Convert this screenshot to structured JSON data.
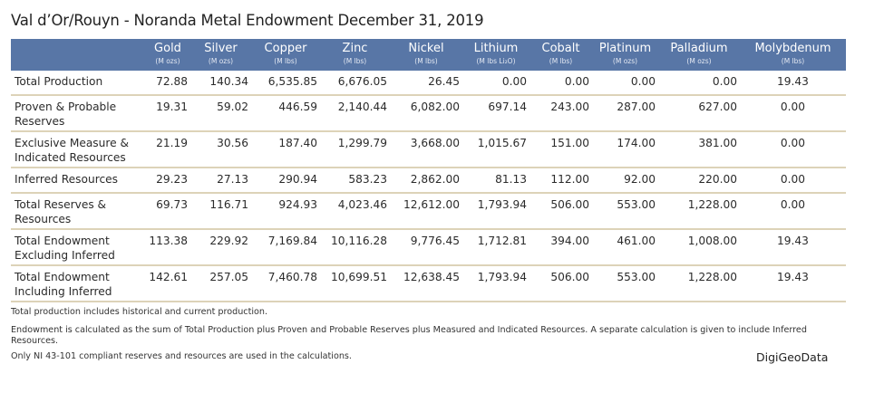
{
  "title": "Val d’Or/Rouyn - Noranda Metal Endowment December 31, 2019",
  "header_color": "#5876a6",
  "columns": [
    {
      "name": "Gold",
      "unit": "(M ozs)"
    },
    {
      "name": "Silver",
      "unit": "(M ozs)"
    },
    {
      "name": "Copper",
      "unit": "(M lbs)"
    },
    {
      "name": "Zinc",
      "unit": "(M lbs)"
    },
    {
      "name": "Nickel",
      "unit": "(M lbs)"
    },
    {
      "name": "Lithium",
      "unit": "(M lbs Li₂O)"
    },
    {
      "name": "Cobalt",
      "unit": "(M lbs)"
    },
    {
      "name": "Platinum",
      "unit": "(M ozs)"
    },
    {
      "name": "Palladium",
      "unit": "(M ozs)"
    },
    {
      "name": "Molybdenum",
      "unit": "(M lbs)"
    }
  ],
  "rows": [
    {
      "label": "Total Production",
      "values": [
        "72.88",
        "140.34",
        "6,535.85",
        "6,676.05",
        "26.45",
        "0.00",
        "0.00",
        "0.00",
        "0.00",
        "19.43"
      ]
    },
    {
      "label": "Proven & Probable Reserves",
      "values": [
        "19.31",
        "59.02",
        "446.59",
        "2,140.44",
        "6,082.00",
        "697.14",
        "243.00",
        "287.00",
        "627.00",
        "0.00"
      ]
    },
    {
      "label": "Exclusive Measure & Indicated Resources",
      "values": [
        "21.19",
        "30.56",
        "187.40",
        "1,299.79",
        "3,668.00",
        "1,015.67",
        "151.00",
        "174.00",
        "381.00",
        "0.00"
      ]
    },
    {
      "label": "Inferred Resources",
      "values": [
        "29.23",
        "27.13",
        "290.94",
        "583.23",
        "2,862.00",
        "81.13",
        "112.00",
        "92.00",
        "220.00",
        "0.00"
      ]
    },
    {
      "label": "Total Reserves & Resources",
      "values": [
        "69.73",
        "116.71",
        "924.93",
        "4,023.46",
        "12,612.00",
        "1,793.94",
        "506.00",
        "553.00",
        "1,228.00",
        "0.00"
      ]
    },
    {
      "label": "Total Endowment Excluding Inferred",
      "values": [
        "113.38",
        "229.92",
        "7,169.84",
        "10,116.28",
        "9,776.45",
        "1,712.81",
        "394.00",
        "461.00",
        "1,008.00",
        "19.43"
      ]
    },
    {
      "label": "Total Endowment Including Inferred",
      "values": [
        "142.61",
        "257.05",
        "7,460.78",
        "10,699.51",
        "12,638.45",
        "1,793.94",
        "506.00",
        "553.00",
        "1,228.00",
        "19.43"
      ]
    }
  ],
  "notes": [
    "Total production includes historical and current production.",
    "Endowment is calculated as the sum of Total Production plus Proven and Probable Reserves plus Measured and Indicated Resources.  A separate calculation is given to include Inferred Resources.",
    "Only NI 43-101 compliant reserves and resources are used in the calculations."
  ],
  "brand": "DigiGeoData"
}
